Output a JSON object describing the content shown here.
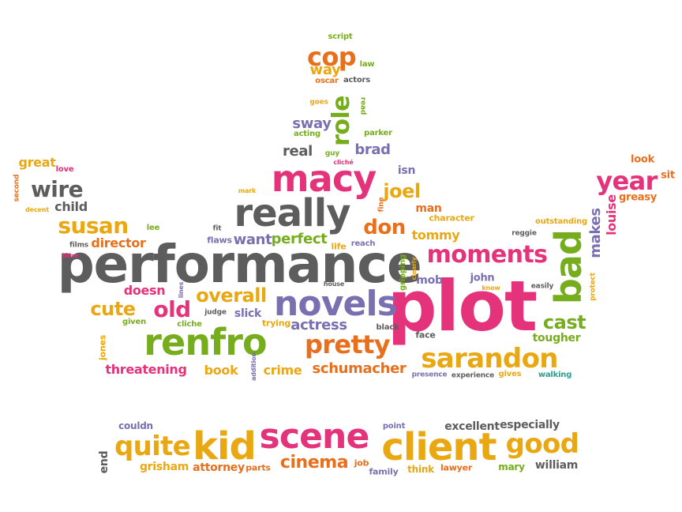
{
  "colors": {
    "magenta": "#e4327b",
    "orange": "#e86f1c",
    "amber": "#e9a812",
    "green": "#76ad1d",
    "gray": "#5d5d5d",
    "purple": "#7a6fb0",
    "teal": "#2a9f8f",
    "background": "#ffffff"
  },
  "words": [
    {
      "text": "plot",
      "color": "magenta"
    },
    {
      "text": "performance",
      "color": "gray"
    },
    {
      "text": "renfro",
      "color": "green"
    },
    {
      "text": "novels",
      "color": "purple"
    },
    {
      "text": "really",
      "color": "gray"
    },
    {
      "text": "macy",
      "color": "magenta"
    },
    {
      "text": "client",
      "color": "amber"
    },
    {
      "text": "scene",
      "color": "magenta"
    },
    {
      "text": "kid",
      "color": "amber"
    },
    {
      "text": "sarandon",
      "color": "amber"
    },
    {
      "text": "moments",
      "color": "magenta"
    },
    {
      "text": "bad",
      "color": "green"
    },
    {
      "text": "pretty",
      "color": "orange"
    },
    {
      "text": "good",
      "color": "amber"
    },
    {
      "text": "quite",
      "color": "amber"
    },
    {
      "text": "year",
      "color": "magenta"
    },
    {
      "text": "cinema",
      "color": "orange"
    },
    {
      "text": "susan",
      "color": "amber"
    },
    {
      "text": "wire",
      "color": "gray"
    },
    {
      "text": "cop",
      "color": "orange"
    },
    {
      "text": "role",
      "color": "green"
    },
    {
      "text": "overall",
      "color": "amber"
    },
    {
      "text": "don",
      "color": "orange"
    },
    {
      "text": "old",
      "color": "magenta"
    },
    {
      "text": "cute",
      "color": "amber"
    },
    {
      "text": "cast",
      "color": "green"
    },
    {
      "text": "joel",
      "color": "amber"
    },
    {
      "text": "makes",
      "color": "purple"
    },
    {
      "text": "louise",
      "color": "magenta"
    },
    {
      "text": "brad",
      "color": "purple"
    },
    {
      "text": "real",
      "color": "gray"
    },
    {
      "text": "sway",
      "color": "purple"
    },
    {
      "text": "way",
      "color": "amber"
    },
    {
      "text": "schumacher",
      "color": "orange"
    },
    {
      "text": "actress",
      "color": "purple"
    },
    {
      "text": "perfect",
      "color": "green"
    },
    {
      "text": "want",
      "color": "purple"
    },
    {
      "text": "tommy",
      "color": "amber"
    },
    {
      "text": "child",
      "color": "gray"
    },
    {
      "text": "great",
      "color": "amber"
    },
    {
      "text": "director",
      "color": "orange"
    },
    {
      "text": "doesn",
      "color": "magenta"
    },
    {
      "text": "threatening",
      "color": "magenta"
    },
    {
      "text": "book",
      "color": "amber"
    },
    {
      "text": "crime",
      "color": "amber"
    },
    {
      "text": "excellent",
      "color": "gray"
    },
    {
      "text": "especially",
      "color": "gray"
    },
    {
      "text": "william",
      "color": "gray"
    },
    {
      "text": "grisham",
      "color": "amber"
    },
    {
      "text": "attorney",
      "color": "orange"
    },
    {
      "text": "tougher",
      "color": "green"
    },
    {
      "text": "greasy",
      "color": "orange"
    },
    {
      "text": "look",
      "color": "orange"
    },
    {
      "text": "sit",
      "color": "orange"
    },
    {
      "text": "isn",
      "color": "purple"
    },
    {
      "text": "man",
      "color": "orange"
    },
    {
      "text": "character",
      "color": "amber"
    },
    {
      "text": "mob",
      "color": "purple"
    },
    {
      "text": "john",
      "color": "purple"
    },
    {
      "text": "slick",
      "color": "purple"
    },
    {
      "text": "trying",
      "color": "amber"
    },
    {
      "text": "couldn",
      "color": "purple"
    },
    {
      "text": "end",
      "color": "gray"
    },
    {
      "text": "mary",
      "color": "green"
    },
    {
      "text": "family",
      "color": "purple"
    },
    {
      "text": "think",
      "color": "amber"
    },
    {
      "text": "lawyer",
      "color": "orange"
    },
    {
      "text": "parts",
      "color": "orange"
    },
    {
      "text": "job",
      "color": "orange"
    },
    {
      "text": "point",
      "color": "purple"
    },
    {
      "text": "script",
      "color": "green"
    },
    {
      "text": "law",
      "color": "green"
    },
    {
      "text": "oscar",
      "color": "orange"
    },
    {
      "text": "actors",
      "color": "gray"
    },
    {
      "text": "read",
      "color": "green"
    },
    {
      "text": "goes",
      "color": "amber"
    },
    {
      "text": "acting",
      "color": "green"
    },
    {
      "text": "parker",
      "color": "green"
    },
    {
      "text": "guy",
      "color": "green"
    },
    {
      "text": "cliché",
      "color": "magenta"
    },
    {
      "text": "fit",
      "color": "gray"
    },
    {
      "text": "mark",
      "color": "amber"
    },
    {
      "text": "fine",
      "color": "orange"
    },
    {
      "text": "love",
      "color": "magenta"
    },
    {
      "text": "second",
      "color": "orange"
    },
    {
      "text": "decent",
      "color": "amber"
    },
    {
      "text": "lee",
      "color": "green"
    },
    {
      "text": "films",
      "color": "gray"
    },
    {
      "text": "time",
      "color": "magenta"
    },
    {
      "text": "flaws",
      "color": "purple"
    },
    {
      "text": "life",
      "color": "amber"
    },
    {
      "text": "reach",
      "color": "purple"
    },
    {
      "text": "house",
      "color": "gray"
    },
    {
      "text": "lines",
      "color": "purple"
    },
    {
      "text": "judge",
      "color": "gray"
    },
    {
      "text": "cliche",
      "color": "green"
    },
    {
      "text": "given",
      "color": "green"
    },
    {
      "text": "jones",
      "color": "amber"
    },
    {
      "text": "addition",
      "color": "purple"
    },
    {
      "text": "black",
      "color": "gray"
    },
    {
      "text": "face",
      "color": "gray"
    },
    {
      "text": "presence",
      "color": "purple"
    },
    {
      "text": "experience",
      "color": "gray"
    },
    {
      "text": "gives",
      "color": "amber"
    },
    {
      "text": "walking",
      "color": "teal"
    },
    {
      "text": "gripping",
      "color": "green"
    },
    {
      "text": "clearly",
      "color": "amber"
    },
    {
      "text": "know",
      "color": "amber"
    },
    {
      "text": "easily",
      "color": "gray"
    },
    {
      "text": "protect",
      "color": "amber"
    },
    {
      "text": "reggie",
      "color": "gray"
    },
    {
      "text": "outstanding",
      "color": "amber"
    }
  ]
}
